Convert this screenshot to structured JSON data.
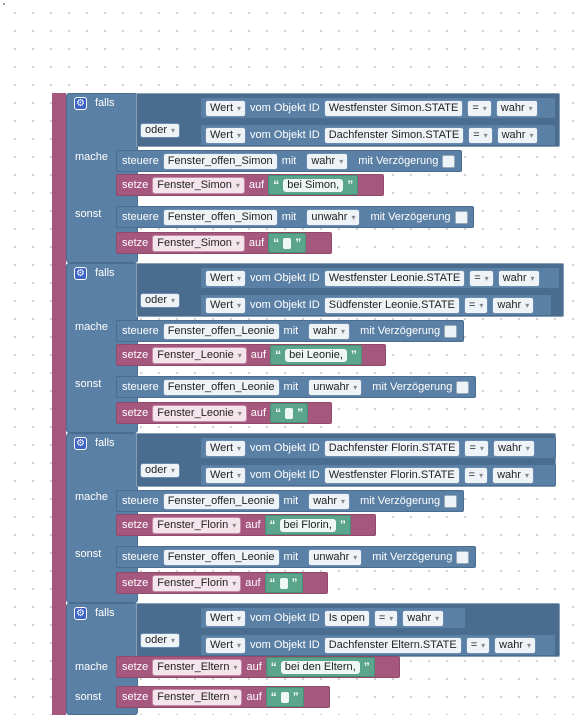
{
  "kw": {
    "falls": "falls",
    "oder": "oder",
    "mache": "mache",
    "sonst": "sonst",
    "wert": "Wert",
    "vom_objekt": "vom Objekt ID",
    "eq": "=",
    "wahr": "wahr",
    "unwahr": "unwahr",
    "steuere": "steuere",
    "mit": "mit",
    "verz": "mit Verzögerung",
    "setze": "setze",
    "auf": "auf",
    "open_q": "“",
    "close_q": "”"
  },
  "groups": [
    {
      "obj1": "Westfenster Simon.STATE",
      "obj2": "Dachfenster Simon.STATE",
      "ctrl_var": "Fenster_offen_Simon",
      "set_var": "Fenster_Simon",
      "text": "bei Simon,"
    },
    {
      "obj1": "Westfenster Leonie.STATE",
      "obj2": "Südfenster Leonie.STATE",
      "ctrl_var": "Fenster_offen_Leonie",
      "set_var": "Fenster_Leonie",
      "text": "bei Leonie,"
    },
    {
      "obj1": "Dachfenster Florin.STATE",
      "obj2": "Westfenster Florin.STATE",
      "ctrl_var": "Fenster_offen_Leonie",
      "set_var": "Fenster_Florin",
      "text": "bei Florin,"
    },
    {
      "obj1": "Is open",
      "obj2": "Dachfenster Eltern.STATE",
      "set_var": "Fenster_Eltern",
      "text": "bei den Eltern,"
    }
  ]
}
